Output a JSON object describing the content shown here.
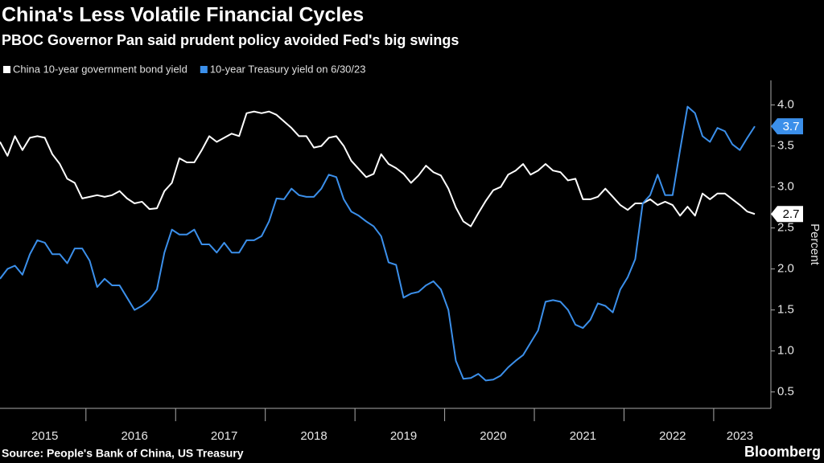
{
  "chart_data": {
    "type": "line",
    "title": "China's Less Volatile Financial Cycles",
    "subtitle": "PBOC Governor Pan said prudent policy avoided Fed's big swings",
    "y_label": "Percent",
    "source": "Source: People's Bank of China, US Treasury",
    "logo": "Bloomberg",
    "categories": [
      null,
      null,
      null,
      null,
      null,
      null,
      "2015",
      null,
      null,
      null,
      null,
      null,
      null,
      null,
      null,
      null,
      null,
      null,
      "2016",
      null,
      null,
      null,
      null,
      null,
      null,
      null,
      null,
      null,
      null,
      null,
      "2017",
      null,
      null,
      null,
      null,
      null,
      null,
      null,
      null,
      null,
      null,
      null,
      "2018",
      null,
      null,
      null,
      null,
      null,
      null,
      null,
      null,
      null,
      null,
      null,
      "2019",
      null,
      null,
      null,
      null,
      null,
      null,
      null,
      null,
      null,
      null,
      null,
      "2020",
      null,
      null,
      null,
      null,
      null,
      null,
      null,
      null,
      null,
      null,
      null,
      "2021",
      null,
      null,
      null,
      null,
      null,
      null,
      null,
      null,
      null,
      null,
      null,
      "2022",
      null,
      null,
      null,
      null,
      null,
      null,
      null,
      null,
      "2023",
      null,
      null
    ],
    "series": [
      {
        "name": "China 10-year government bond yield",
        "color": "#ffffff",
        "end_label": "2.7",
        "values": [
          3.55,
          3.38,
          3.62,
          3.45,
          3.6,
          3.62,
          3.6,
          3.4,
          3.28,
          3.1,
          3.05,
          2.86,
          2.88,
          2.9,
          2.88,
          2.9,
          2.95,
          2.86,
          2.8,
          2.82,
          2.73,
          2.74,
          2.95,
          3.05,
          3.35,
          3.3,
          3.3,
          3.45,
          3.62,
          3.55,
          3.6,
          3.65,
          3.62,
          3.9,
          3.92,
          3.9,
          3.92,
          3.88,
          3.8,
          3.72,
          3.62,
          3.62,
          3.48,
          3.5,
          3.6,
          3.62,
          3.5,
          3.32,
          3.22,
          3.12,
          3.16,
          3.4,
          3.28,
          3.23,
          3.16,
          3.05,
          3.14,
          3.26,
          3.18,
          3.14,
          2.98,
          2.75,
          2.58,
          2.52,
          2.68,
          2.83,
          2.96,
          3.0,
          3.15,
          3.2,
          3.28,
          3.15,
          3.2,
          3.28,
          3.2,
          3.18,
          3.08,
          3.1,
          2.85,
          2.85,
          2.88,
          2.98,
          2.88,
          2.78,
          2.72,
          2.8,
          2.8,
          2.85,
          2.78,
          2.82,
          2.78,
          2.65,
          2.76,
          2.65,
          2.92,
          2.85,
          2.92,
          2.92,
          2.85,
          2.78,
          2.7,
          2.67
        ]
      },
      {
        "name": "10-year Treasury yield on 6/30/23",
        "color": "#3b8fea",
        "end_label": "3.7",
        "values": [
          1.88,
          2.0,
          2.04,
          1.93,
          2.18,
          2.35,
          2.32,
          2.18,
          2.18,
          2.07,
          2.25,
          2.25,
          2.1,
          1.78,
          1.88,
          1.8,
          1.8,
          1.65,
          1.5,
          1.55,
          1.62,
          1.75,
          2.2,
          2.48,
          2.42,
          2.42,
          2.48,
          2.3,
          2.3,
          2.2,
          2.32,
          2.2,
          2.2,
          2.35,
          2.35,
          2.4,
          2.58,
          2.86,
          2.85,
          2.98,
          2.9,
          2.88,
          2.88,
          2.98,
          3.15,
          3.12,
          2.85,
          2.7,
          2.65,
          2.58,
          2.52,
          2.4,
          2.08,
          2.05,
          1.65,
          1.7,
          1.72,
          1.8,
          1.85,
          1.75,
          1.5,
          0.88,
          0.66,
          0.67,
          0.72,
          0.64,
          0.65,
          0.7,
          0.8,
          0.88,
          0.95,
          1.1,
          1.25,
          1.6,
          1.62,
          1.6,
          1.5,
          1.32,
          1.28,
          1.38,
          1.58,
          1.55,
          1.47,
          1.75,
          1.9,
          2.12,
          2.8,
          2.9,
          3.15,
          2.9,
          2.9,
          3.45,
          3.98,
          3.9,
          3.62,
          3.55,
          3.72,
          3.68,
          3.52,
          3.45,
          3.6,
          3.74
        ]
      }
    ],
    "ylim": [
      0.3,
      4.3
    ],
    "yticks": [
      {
        "value": 4,
        "label": "4.0"
      },
      3.5,
      {
        "value": 3,
        "label": "3.0"
      },
      2.5,
      {
        "value": 2,
        "label": "2.0"
      },
      1.5,
      {
        "value": 1,
        "label": "1.0"
      },
      0.5
    ],
    "grid": false
  }
}
